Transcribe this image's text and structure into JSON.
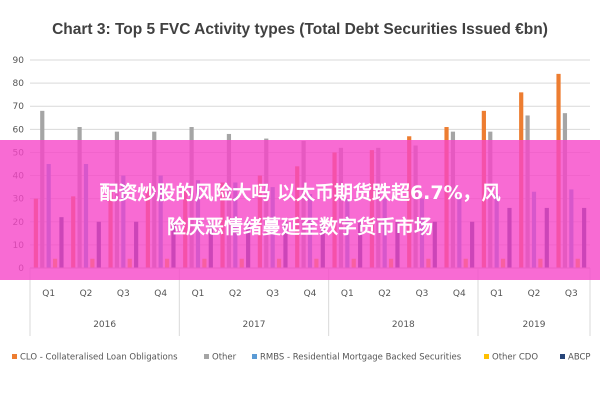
{
  "banner": {
    "line1": "配资炒股的风险大吗 以太币期货跌超6.7%，风",
    "line2": "险厌恶情绪蔓延至数字货币市场",
    "color": "#f646c8"
  },
  "chart_data": {
    "type": "bar",
    "title": "Chart 3: Top 5 FVC Activity types (Total Debt Securities Issued €bn)",
    "xlabel": "",
    "ylabel": "",
    "ylim": [
      0,
      90
    ],
    "yticks": [
      0,
      10,
      20,
      30,
      40,
      50,
      60,
      70,
      80,
      90
    ],
    "grid": true,
    "legend_position": "bottom",
    "categories": [
      "Q1",
      "Q2",
      "Q3",
      "Q4",
      "Q1",
      "Q2",
      "Q3",
      "Q4",
      "Q1",
      "Q2",
      "Q3",
      "Q4",
      "Q1",
      "Q2",
      "Q3"
    ],
    "years": [
      {
        "label": "2016",
        "quarters": 4
      },
      {
        "label": "2017",
        "quarters": 4
      },
      {
        "label": "2018",
        "quarters": 4
      },
      {
        "label": "2019",
        "quarters": 3
      }
    ],
    "series": [
      {
        "name": "CLO - Collateralised Loan Obligations",
        "color": "#ed7d31",
        "values": [
          30,
          31,
          33,
          35,
          34,
          37,
          40,
          44,
          50,
          51,
          57,
          61,
          68,
          76,
          84
        ]
      },
      {
        "name": "Other",
        "color": "#a5a5a5",
        "values": [
          68,
          61,
          59,
          59,
          61,
          58,
          56,
          55,
          52,
          52,
          53,
          59,
          59,
          66,
          67
        ]
      },
      {
        "name": "RMBS - Residential Mortgage Backed Securities",
        "color": "#5b9bd5",
        "values": [
          45,
          45,
          40,
          40,
          38,
          37,
          35,
          32,
          30,
          30,
          30,
          31,
          32,
          33,
          34
        ]
      },
      {
        "name": "Other CDO",
        "color": "#ffc000",
        "values": [
          4,
          4,
          4,
          4,
          4,
          4,
          4,
          4,
          4,
          4,
          4,
          4,
          4,
          4,
          4
        ]
      },
      {
        "name": "ABCP",
        "color": "#264478",
        "values": [
          22,
          20,
          20,
          20,
          20,
          20,
          20,
          20,
          20,
          20,
          20,
          20,
          26,
          26,
          26
        ]
      }
    ]
  }
}
